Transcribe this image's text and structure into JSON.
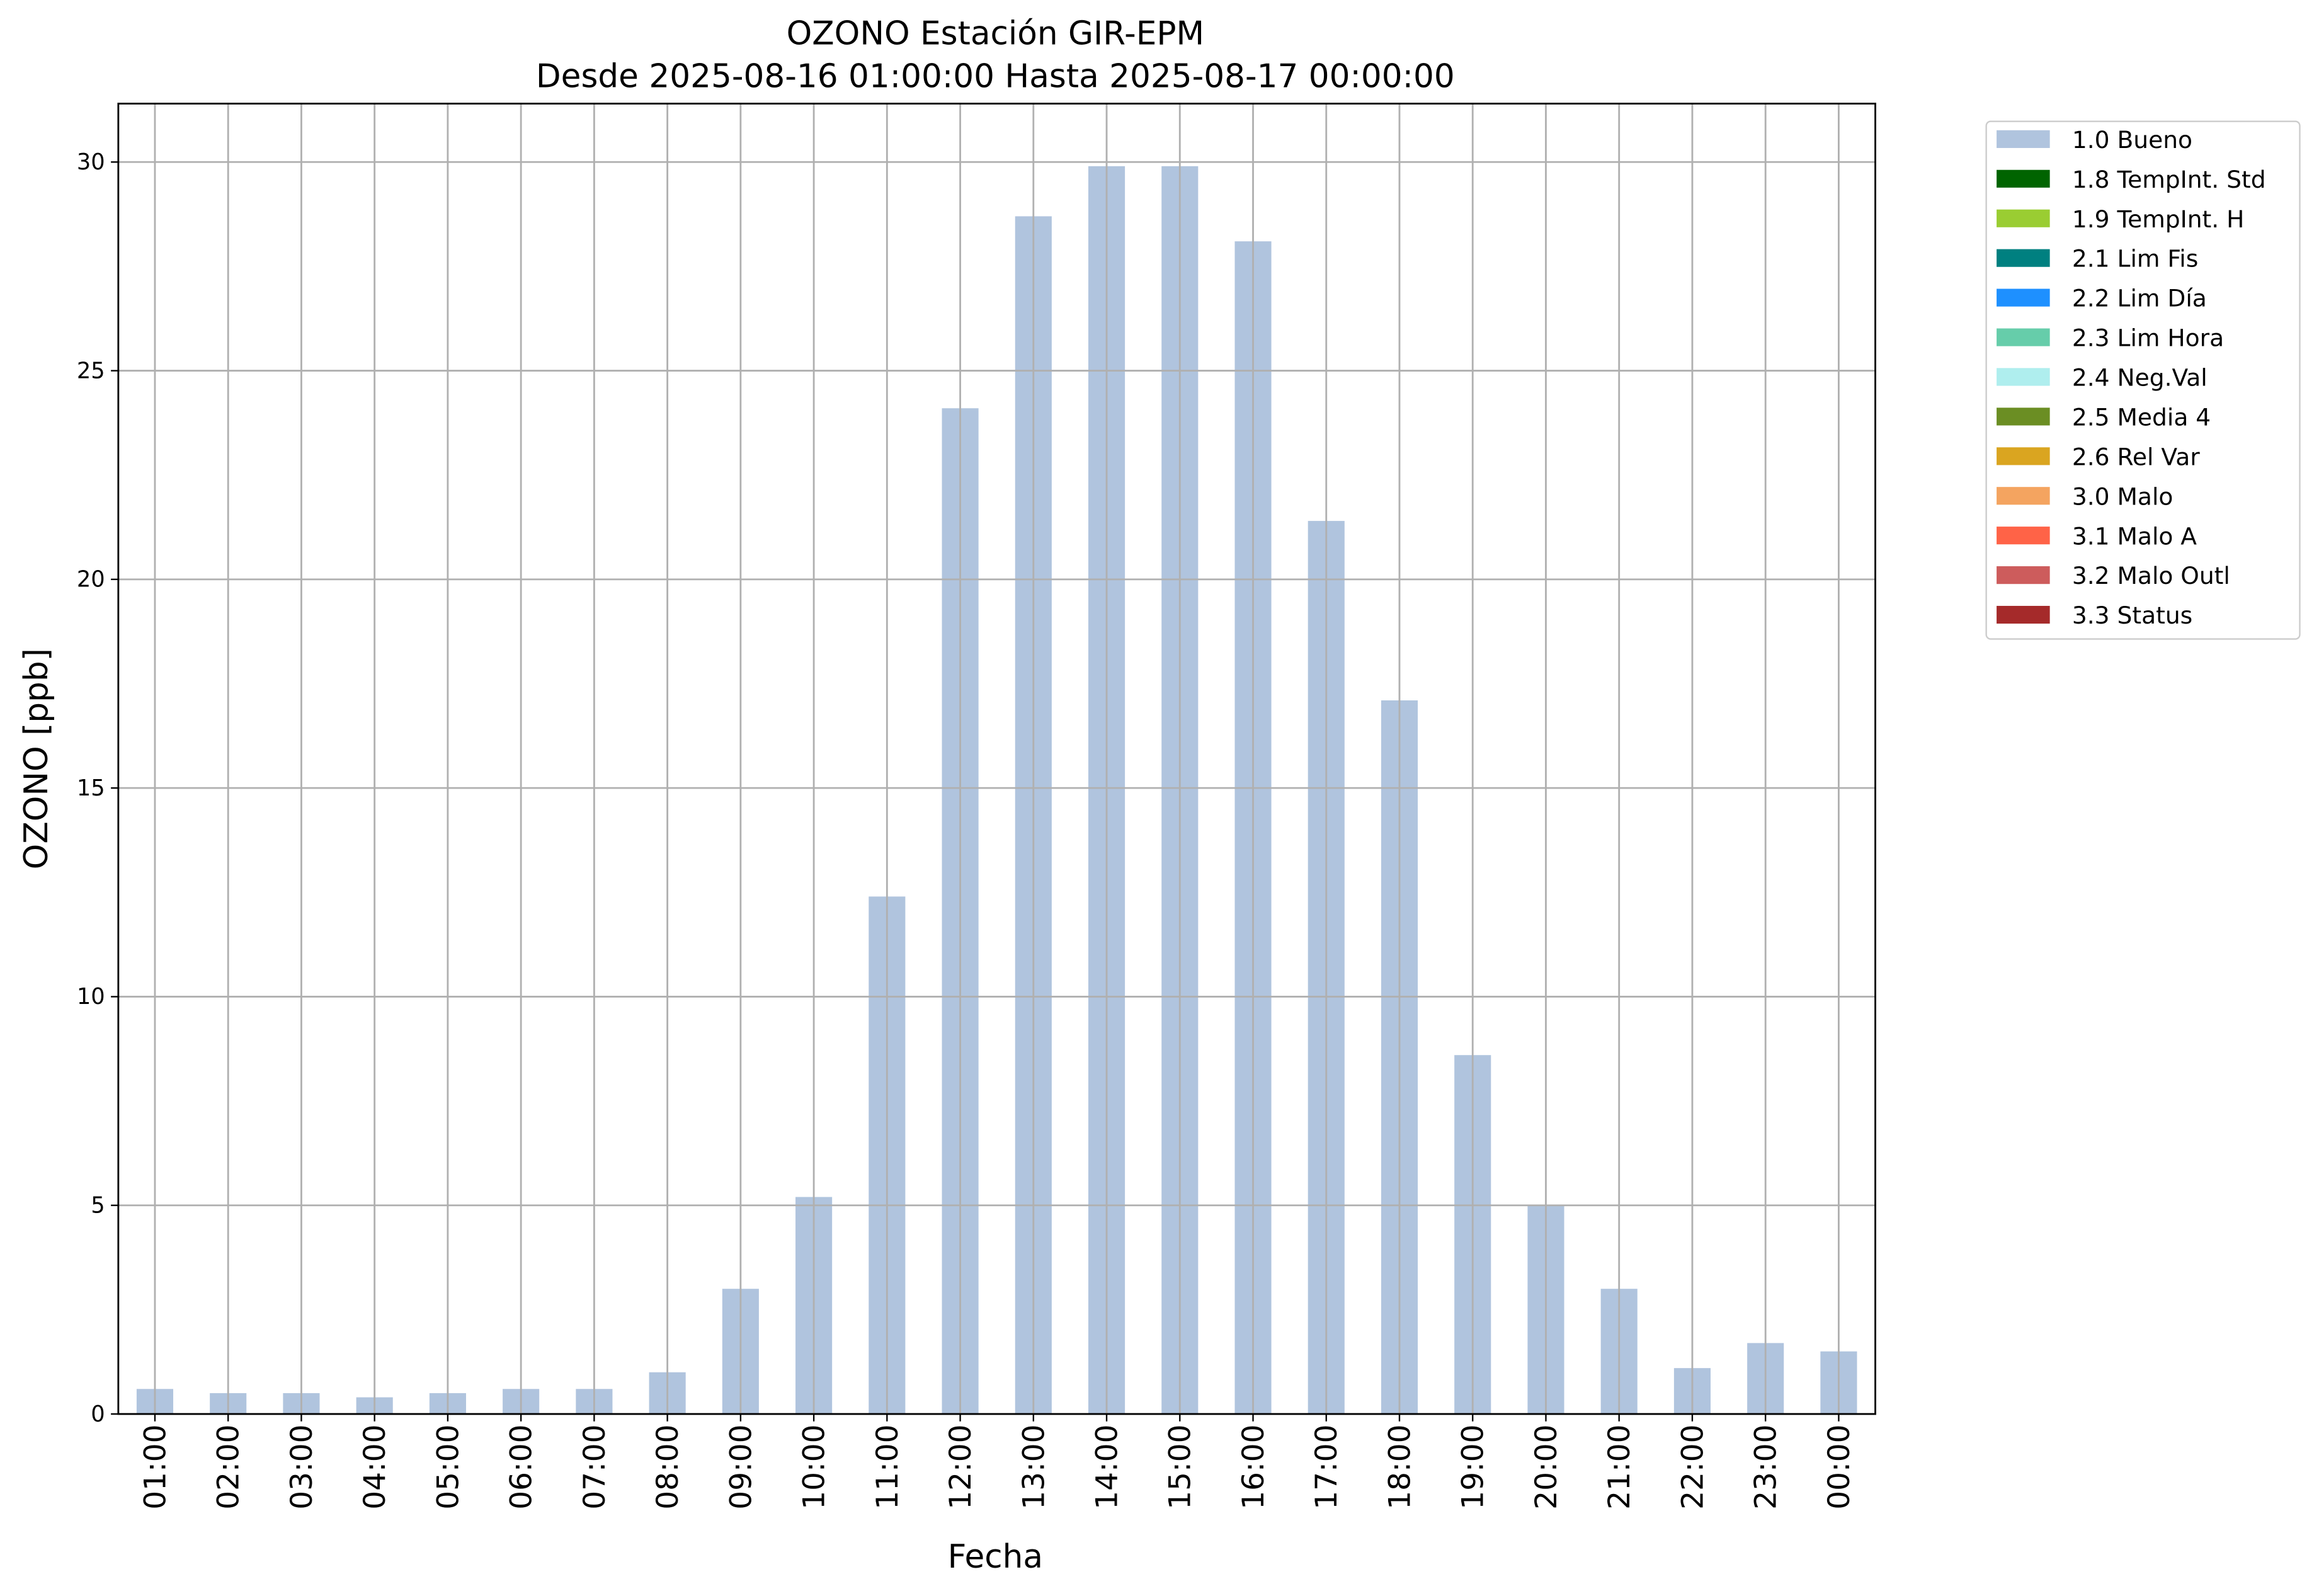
{
  "chart_data": {
    "type": "bar",
    "title": "OZONO Estación GIR-EPM",
    "subtitle": "Desde 2025-08-16 01:00:00 Hasta 2025-08-17 00:00:00",
    "x_label": "Fecha",
    "y_label": "OZONO [ppb]",
    "categories": [
      "01:00",
      "02:00",
      "03:00",
      "04:00",
      "05:00",
      "06:00",
      "07:00",
      "08:00",
      "09:00",
      "10:00",
      "11:00",
      "12:00",
      "13:00",
      "14:00",
      "15:00",
      "16:00",
      "17:00",
      "18:00",
      "19:00",
      "20:00",
      "21:00",
      "22:00",
      "23:00",
      "00:00"
    ],
    "series": [
      {
        "name": "1.0 Bueno",
        "color": "#b0c4de",
        "values": [
          0.6,
          0.5,
          0.5,
          0.4,
          0.5,
          0.6,
          0.6,
          1.0,
          3.0,
          5.2,
          12.4,
          24.1,
          28.7,
          29.9,
          29.9,
          28.1,
          21.4,
          17.1,
          8.6,
          5.0,
          3.0,
          1.1,
          1.7,
          1.5
        ]
      },
      {
        "name": "1.8 TempInt. Std",
        "color": "#006400"
      },
      {
        "name": "1.9 TempInt. H",
        "color": "#9acd32"
      },
      {
        "name": "2.1 Lim Fis",
        "color": "#008080"
      },
      {
        "name": "2.2 Lim Día",
        "color": "#1e90ff"
      },
      {
        "name": "2.3 Lim Hora",
        "color": "#66cdaa"
      },
      {
        "name": "2.4 Neg.Val",
        "color": "#afeeee"
      },
      {
        "name": "2.5 Media 4",
        "color": "#6b8e23"
      },
      {
        "name": "2.6 Rel Var",
        "color": "#daa520"
      },
      {
        "name": "3.0 Malo",
        "color": "#f4a460"
      },
      {
        "name": "3.1 Malo A",
        "color": "#ff6347"
      },
      {
        "name": "3.2 Malo Outl",
        "color": "#cd5c5c"
      },
      {
        "name": "3.3 Status",
        "color": "#a52a2a"
      }
    ],
    "ylim": [
      0,
      31.4
    ],
    "yticks": [
      0,
      5,
      10,
      15,
      20,
      25,
      30
    ],
    "grid": true,
    "legend": "outside-upper-right"
  }
}
